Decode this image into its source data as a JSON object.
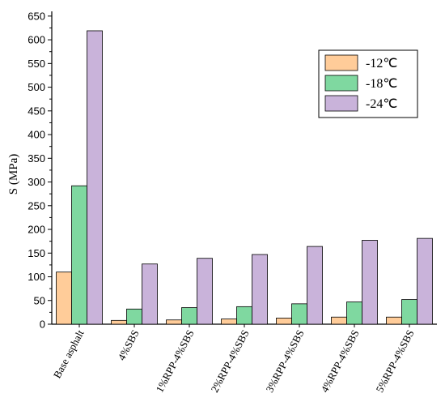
{
  "chart_data": {
    "type": "bar",
    "ylabel": "S (MPa)",
    "xlabel": "",
    "ylim": [
      0,
      660
    ],
    "yticks": [
      0,
      50,
      100,
      150,
      200,
      250,
      300,
      350,
      400,
      450,
      500,
      550,
      600,
      650
    ],
    "yticks_minor_step": 25,
    "categories": [
      "Base asphalt",
      "4%SBS",
      "1%RPP-4%SBS",
      "2%RPP-4%SBS",
      "3%RPP-4%SBS",
      "4%RPP-4%SBS",
      "5%RPP-4%SBS"
    ],
    "series": [
      {
        "name": "-12℃",
        "color": "#FFCC99",
        "values": [
          110,
          8,
          9,
          11,
          13,
          15,
          15
        ]
      },
      {
        "name": "-18℃",
        "color": "#7FD8A0",
        "values": [
          292,
          32,
          35,
          37,
          43,
          47,
          52
        ]
      },
      {
        "name": "-24℃",
        "color": "#C9B3DA",
        "values": [
          619,
          127,
          139,
          147,
          164,
          177,
          181
        ]
      }
    ],
    "legend": {
      "position": "top-right",
      "labels": [
        "-12℃",
        "-18℃",
        "-24℃"
      ]
    },
    "grid": false
  }
}
